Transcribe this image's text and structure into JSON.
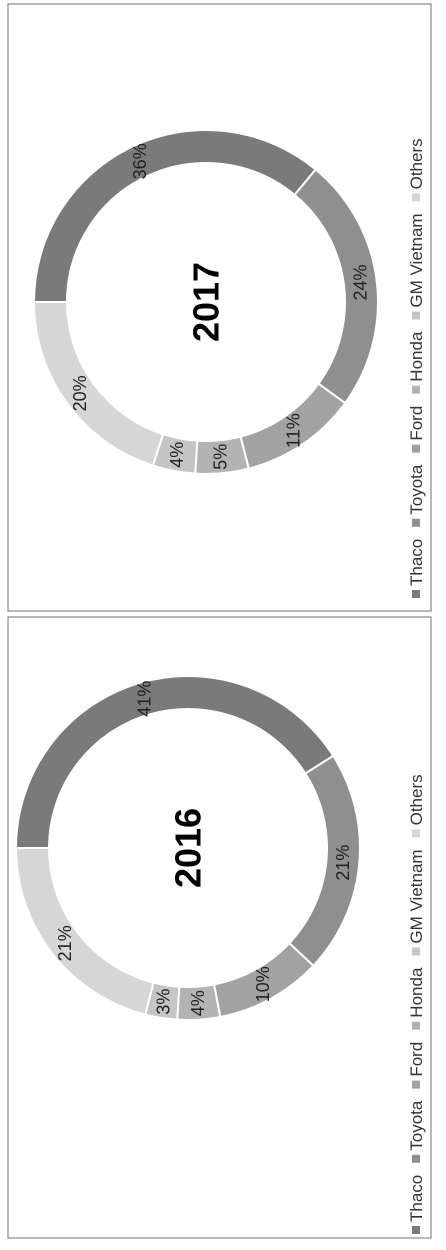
{
  "colors": {
    "Thaco": "#7a7a7a",
    "Toyota": "#8f8f8f",
    "Ford": "#a2a2a2",
    "Honda": "#b3b3b3",
    "GM Vietnam": "#c5c5c5",
    "Others": "#d6d6d6",
    "frame": "#888888",
    "label": "#222222",
    "legend_text": "#333333"
  },
  "chart_data": [
    {
      "type": "pie",
      "variant": "donut",
      "rotation": "rotated 90 degrees counter-clockwise",
      "title": "2016",
      "legend_position": "bottom",
      "categories": [
        "Thaco",
        "Toyota",
        "Ford",
        "Honda",
        "GM Vietnam",
        "Others"
      ],
      "values": [
        41,
        21,
        10,
        4,
        3,
        21
      ],
      "data_labels": [
        "41%",
        "21%",
        "10%",
        "4%",
        "3%",
        "21%"
      ]
    },
    {
      "type": "pie",
      "variant": "donut",
      "rotation": "rotated 90 degrees counter-clockwise",
      "title": "2017",
      "legend_position": "bottom",
      "categories": [
        "Thaco",
        "Toyota",
        "Ford",
        "Honda",
        "GM Vietnam",
        "Others"
      ],
      "values": [
        36,
        24,
        11,
        5,
        4,
        20
      ],
      "data_labels": [
        "36%",
        "24%",
        "11%",
        "5%",
        "4%",
        "20%"
      ]
    }
  ]
}
